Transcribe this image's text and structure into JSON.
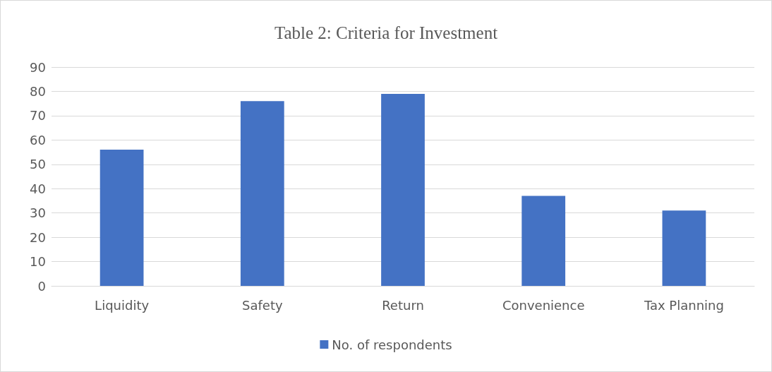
{
  "chart_data": {
    "type": "bar",
    "title": "Table 2: Criteria for Investment",
    "categories": [
      "Liquidity",
      "Safety",
      "Return",
      "Convenience",
      "Tax Planning"
    ],
    "series": [
      {
        "name": "No. of respondents",
        "color": "#4472c4",
        "values": [
          56,
          76,
          79,
          37,
          31
        ]
      }
    ],
    "ylim": [
      0,
      90
    ],
    "yticks": [
      0,
      10,
      20,
      30,
      40,
      50,
      60,
      70,
      80,
      90
    ],
    "grid": "y",
    "legend": "bottom"
  }
}
